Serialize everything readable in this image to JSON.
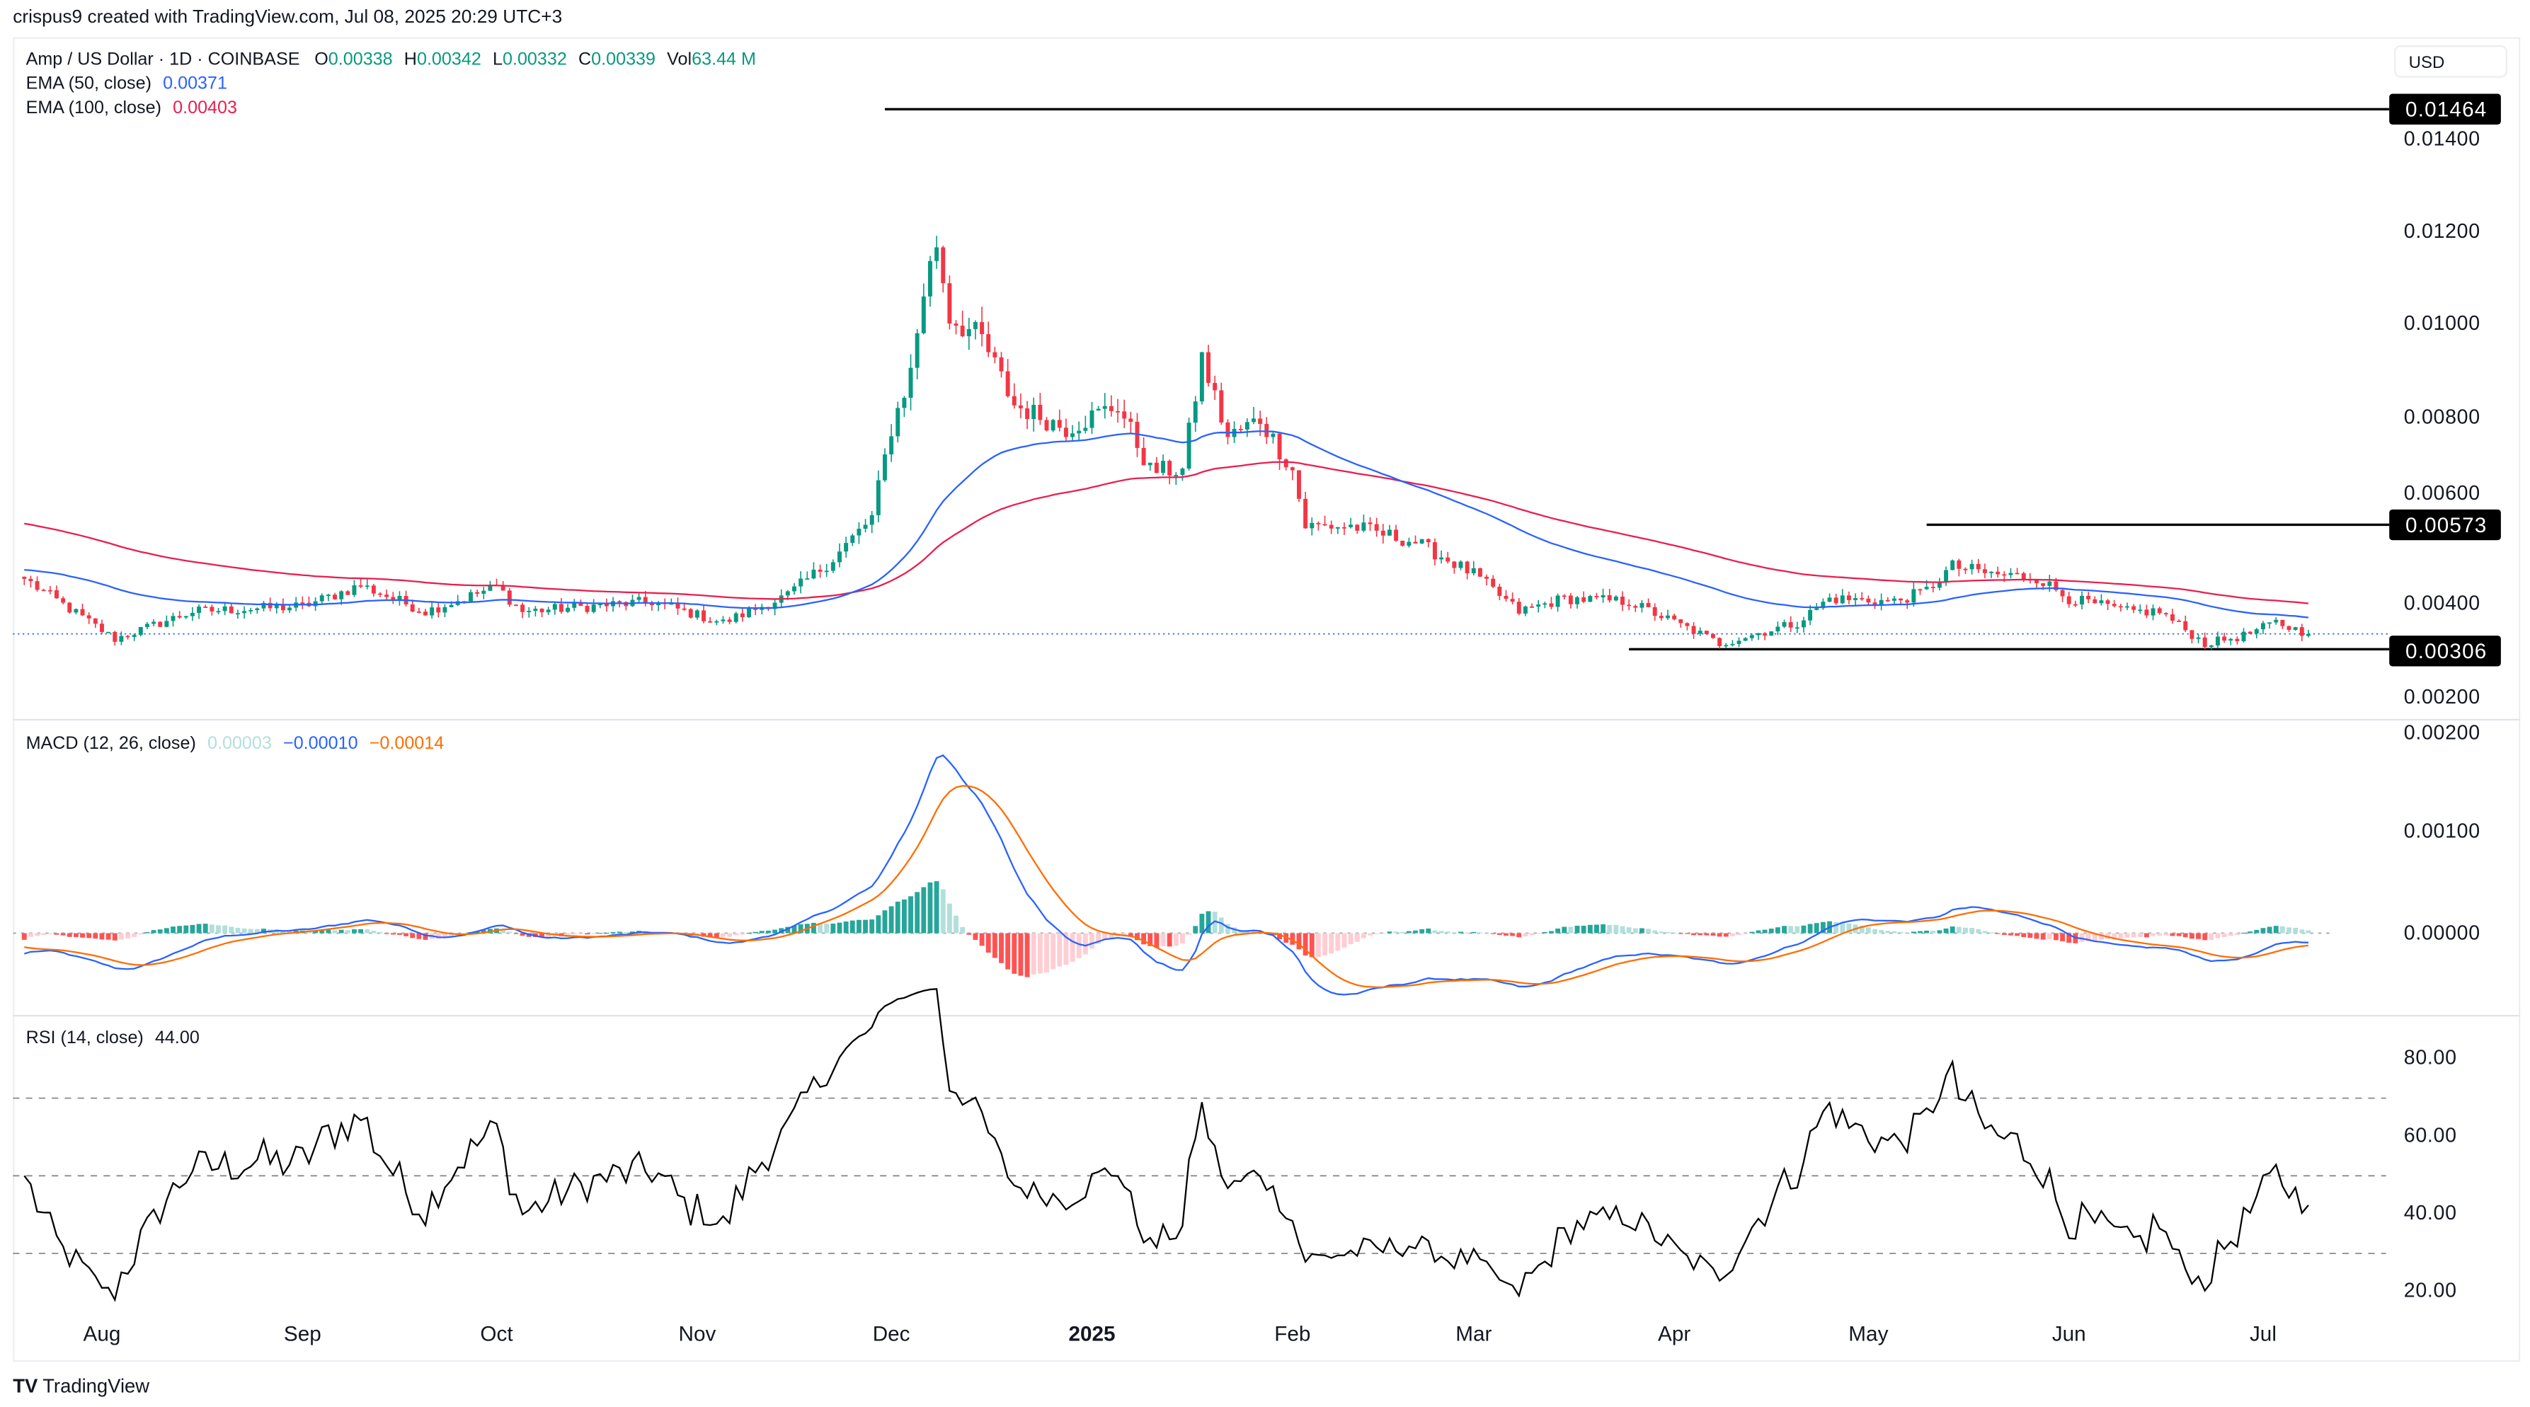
{
  "header": {
    "credit": "crispus9 created with TradingView.com, Jul 08, 2025 20:29 UTC+3"
  },
  "legend": {
    "symbol": "Amp / US Dollar · 1D · COINBASE",
    "o_label": "O",
    "o": "0.00338",
    "h_label": "H",
    "h": "0.00342",
    "l_label": "L",
    "l": "0.00332",
    "c_label": "C",
    "c": "0.00339",
    "vol_label": "Vol",
    "vol": "63.44 M",
    "ema50_label": "EMA (50, close)",
    "ema50": "0.00371",
    "ema100_label": "EMA (100, close)",
    "ema100": "0.00403",
    "macd_label": "MACD (12, 26, close)",
    "macd_hist": "0.00003",
    "macd_line": "−0.00010",
    "macd_signal": "−0.00014",
    "rsi_label": "RSI (14, close)",
    "rsi": "44.00"
  },
  "currency_button": "USD",
  "price_labels": {
    "high": "0.01464",
    "mid": "0.00573",
    "low": "0.00306"
  },
  "footer": {
    "logo": "TradingView"
  },
  "colors": {
    "up": "#089981",
    "down": "#f23645",
    "ema50": "#2962ff",
    "ema100": "#e91e4f",
    "macd": "#2962ff",
    "signal": "#ff6d00"
  },
  "chart_data": {
    "type": "candlestick",
    "title": "Amp / US Dollar · 1D · COINBASE",
    "start_date": "2024-07-20",
    "end_date": "2025-07-08",
    "close_anchors": [
      [
        "2024-07-20",
        0.00457
      ],
      [
        "2024-08-03",
        0.00328
      ],
      [
        "2024-08-15",
        0.00387
      ],
      [
        "2024-09-01",
        0.00398
      ],
      [
        "2024-09-10",
        0.00443
      ],
      [
        "2024-09-20",
        0.00387
      ],
      [
        "2024-10-01",
        0.0044
      ],
      [
        "2024-10-05",
        0.00387
      ],
      [
        "2024-10-25",
        0.00408
      ],
      [
        "2024-11-05",
        0.00363
      ],
      [
        "2024-11-15",
        0.00422
      ],
      [
        "2024-11-22",
        0.005
      ],
      [
        "2024-11-28",
        0.00588
      ],
      [
        "2024-12-01",
        0.0078
      ],
      [
        "2024-12-04",
        0.009
      ],
      [
        "2024-12-06",
        0.01074
      ],
      [
        "2024-12-08",
        0.01178
      ],
      [
        "2024-12-10",
        0.0102
      ],
      [
        "2024-12-15",
        0.0097
      ],
      [
        "2024-12-20",
        0.0083
      ],
      [
        "2024-12-28",
        0.0078
      ],
      [
        "2025-01-05",
        0.0083
      ],
      [
        "2025-01-10",
        0.0069
      ],
      [
        "2025-01-15",
        0.0069
      ],
      [
        "2025-01-18",
        0.0093
      ],
      [
        "2025-01-22",
        0.0076
      ],
      [
        "2025-01-27",
        0.008
      ],
      [
        "2025-02-01",
        0.0069
      ],
      [
        "2025-02-03",
        0.0057
      ],
      [
        "2025-02-10",
        0.0057
      ],
      [
        "2025-02-20",
        0.00536
      ],
      [
        "2025-03-01",
        0.00467
      ],
      [
        "2025-03-08",
        0.00387
      ],
      [
        "2025-03-15",
        0.00415
      ],
      [
        "2025-03-25",
        0.00408
      ],
      [
        "2025-04-05",
        0.00339
      ],
      [
        "2025-04-08",
        0.00318
      ],
      [
        "2025-04-20",
        0.00363
      ],
      [
        "2025-04-25",
        0.00415
      ],
      [
        "2025-05-05",
        0.00408
      ],
      [
        "2025-05-10",
        0.00432
      ],
      [
        "2025-05-14",
        0.00484
      ],
      [
        "2025-05-20",
        0.00467
      ],
      [
        "2025-05-27",
        0.0046
      ],
      [
        "2025-06-01",
        0.00415
      ],
      [
        "2025-06-10",
        0.00387
      ],
      [
        "2025-06-15",
        0.00387
      ],
      [
        "2025-06-22",
        0.00318
      ],
      [
        "2025-06-28",
        0.00335
      ],
      [
        "2025-07-03",
        0.00363
      ],
      [
        "2025-07-08",
        0.00339
      ]
    ],
    "ema50_initial": 0.00477,
    "ema100_initial": 0.00578,
    "horizontal_levels": [
      {
        "value": 0.01464,
        "from": "2024-11-30"
      },
      {
        "value": 0.00573,
        "from": "2025-05-10"
      },
      {
        "value": 0.00306,
        "from": "2025-03-25"
      }
    ],
    "current_price": 0.00339,
    "price_axis": {
      "ticks": [
        "0.01400",
        "0.01200",
        "0.01000",
        "0.00800",
        "0.00600",
        "0.00400",
        "0.00200"
      ],
      "ylim": [
        0.0016,
        0.0151
      ]
    },
    "macd_axis": {
      "ticks": [
        "0.00200",
        "0.00100",
        "0.00000"
      ],
      "ylim": [
        -0.0008,
        0.002
      ]
    },
    "rsi_axis": {
      "ticks": [
        "80.00",
        "60.00",
        "40.00",
        "20.00"
      ],
      "levels": [
        70,
        50,
        30
      ],
      "ylim": [
        10,
        90
      ]
    },
    "x_ticks": [
      {
        "label": "Aug",
        "date": "2024-08-01"
      },
      {
        "label": "Sep",
        "date": "2024-09-01"
      },
      {
        "label": "Oct",
        "date": "2024-10-01"
      },
      {
        "label": "Nov",
        "date": "2024-11-01"
      },
      {
        "label": "Dec",
        "date": "2024-12-01"
      },
      {
        "label": "2025",
        "date": "2025-01-01",
        "bold": true
      },
      {
        "label": "Feb",
        "date": "2025-02-01"
      },
      {
        "label": "Mar",
        "date": "2025-03-01"
      },
      {
        "label": "Apr",
        "date": "2025-04-01"
      },
      {
        "label": "May",
        "date": "2025-05-01"
      },
      {
        "label": "Jun",
        "date": "2025-06-01"
      },
      {
        "label": "Jul",
        "date": "2025-07-01"
      }
    ]
  }
}
